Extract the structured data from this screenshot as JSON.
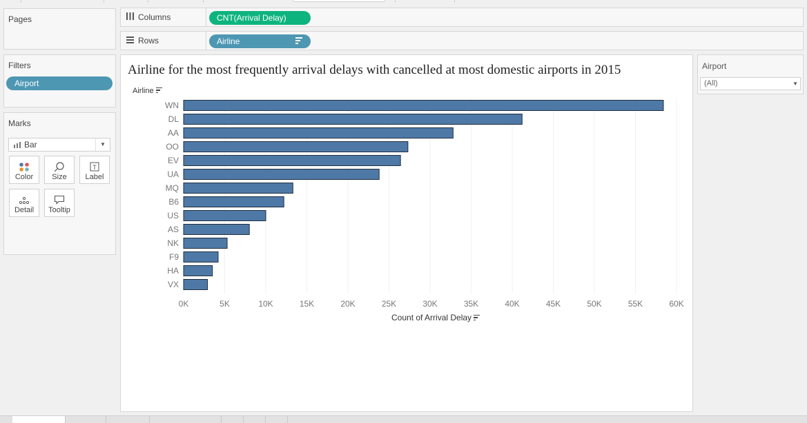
{
  "left_panels": {
    "pages_title": "Pages",
    "filters_title": "Filters",
    "filter_pill": "Airport",
    "marks_title": "Marks",
    "marks_type": "Bar",
    "mark_buttons": [
      {
        "label": "Color",
        "icon": "color-dots-icon"
      },
      {
        "label": "Size",
        "icon": "size-icon"
      },
      {
        "label": "Label",
        "icon": "label-icon"
      },
      {
        "label": "Detail",
        "icon": "detail-dots-icon"
      },
      {
        "label": "Tooltip",
        "icon": "tooltip-icon"
      }
    ]
  },
  "shelves": {
    "columns_label": "Columns",
    "columns_pill": "CNT(Arrival Delay)",
    "rows_label": "Rows",
    "rows_pill": "Airline"
  },
  "right_panel": {
    "title": "Airport",
    "select_value": "(All)"
  },
  "colors": {
    "bar": "#4e79a7",
    "pill_green": "#0eb47e",
    "pill_blue": "#4d97b3"
  },
  "chart_data": {
    "type": "bar",
    "orientation": "horizontal",
    "title": "Airline for the most frequently arrival delays with cancelled at most domestic airports in 2015",
    "ylabel": "Airline",
    "xlabel": "Count of Arrival Delay",
    "categories": [
      "WN",
      "DL",
      "AA",
      "OO",
      "EV",
      "UA",
      "MQ",
      "B6",
      "US",
      "AS",
      "NK",
      "F9",
      "HA",
      "VX"
    ],
    "values": [
      58400,
      41200,
      32800,
      27300,
      26400,
      23800,
      13300,
      12200,
      10000,
      8000,
      5300,
      4200,
      3500,
      2900
    ],
    "xlim": [
      0,
      60000
    ],
    "xticks": [
      0,
      5000,
      10000,
      15000,
      20000,
      25000,
      30000,
      35000,
      40000,
      45000,
      50000,
      55000,
      60000
    ],
    "xtick_labels": [
      "0K",
      "5K",
      "10K",
      "15K",
      "20K",
      "25K",
      "30K",
      "35K",
      "40K",
      "45K",
      "50K",
      "55K",
      "60K"
    ],
    "grid": "vertical"
  }
}
